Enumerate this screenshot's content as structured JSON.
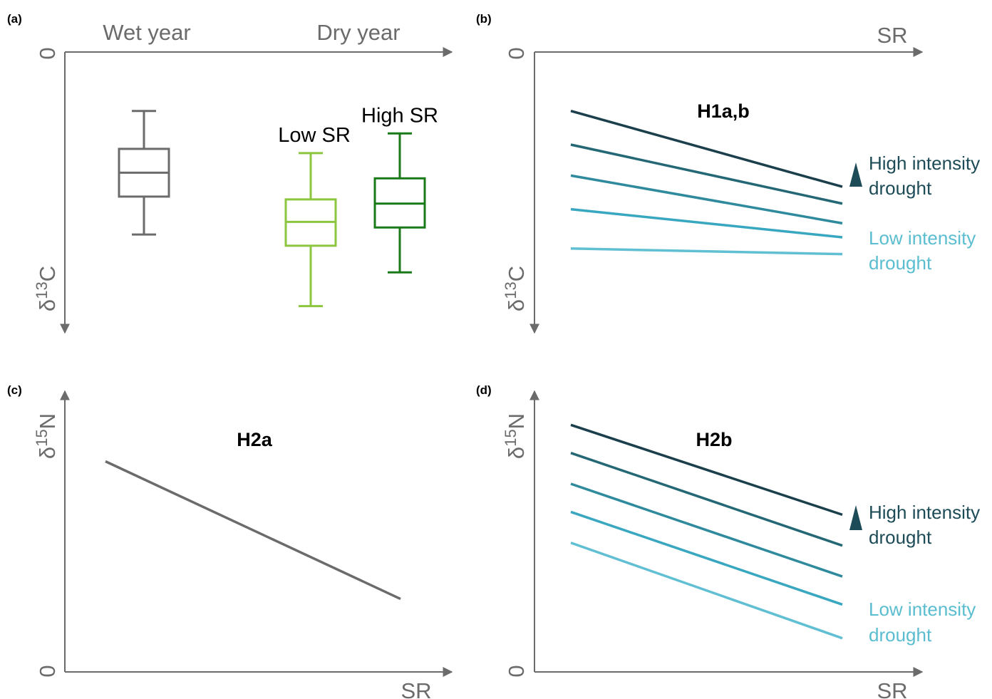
{
  "panels": {
    "a": {
      "label": "(a)",
      "x_categories": [
        "Wet year",
        "Dry year"
      ],
      "y_zero": "0",
      "y_axis": {
        "delta": "δ",
        "sup": "13",
        "element": "C"
      },
      "boxes": [
        {
          "label": "",
          "color": "#6b6b6b",
          "whisker_low": 0.35,
          "q1": 0.485,
          "median": 0.57,
          "q3": 0.655,
          "whisker_high": 0.79
        },
        {
          "label": "Low SR",
          "color": "#8cc63f",
          "whisker_low": 0.095,
          "q1": 0.31,
          "median": 0.395,
          "q3": 0.475,
          "whisker_high": 0.64
        },
        {
          "label": "High SR",
          "color": "#1a7a1a",
          "whisker_low": 0.215,
          "q1": 0.375,
          "median": 0.46,
          "q3": 0.55,
          "whisker_high": 0.71
        }
      ]
    },
    "b": {
      "label": "(b)",
      "x_axis": "SR",
      "y_zero": "0",
      "y_axis": {
        "delta": "δ",
        "sup": "13",
        "element": "C"
      },
      "hypothesis": "H1a,b",
      "legend_high": [
        "High intensity",
        "drought"
      ],
      "legend_low": [
        "Low intensity",
        "drought"
      ],
      "lines": [
        {
          "start": 0.79,
          "end": 0.52,
          "color": "#1c3f4c"
        },
        {
          "start": 0.67,
          "end": 0.46,
          "color": "#256875"
        },
        {
          "start": 0.56,
          "end": 0.39,
          "color": "#2e8a9c"
        },
        {
          "start": 0.44,
          "end": 0.34,
          "color": "#3aa7c0"
        },
        {
          "start": 0.3,
          "end": 0.28,
          "color": "#60bfd2"
        }
      ]
    },
    "c": {
      "label": "(c)",
      "x_axis": "SR",
      "y_zero": "0",
      "y_axis": {
        "delta": "δ",
        "sup": "15",
        "element": "N"
      },
      "hypothesis": "H2a",
      "lines": [
        {
          "start": 0.75,
          "end": 0.26,
          "color": "#6b6b6b"
        }
      ]
    },
    "d": {
      "label": "(d)",
      "x_axis": "SR",
      "y_zero": "0",
      "y_axis": {
        "delta": "δ",
        "sup": "15",
        "element": "N"
      },
      "hypothesis": "H2b",
      "legend_high": [
        "High intensity",
        "drought"
      ],
      "legend_low": [
        "Low intensity",
        "drought"
      ],
      "lines": [
        {
          "start": 0.88,
          "end": 0.56,
          "color": "#1c3f4c"
        },
        {
          "start": 0.78,
          "end": 0.45,
          "color": "#256875"
        },
        {
          "start": 0.67,
          "end": 0.34,
          "color": "#2e8a9c"
        },
        {
          "start": 0.57,
          "end": 0.24,
          "color": "#3aa7c0"
        },
        {
          "start": 0.46,
          "end": 0.12,
          "color": "#60bfd2"
        }
      ]
    }
  }
}
